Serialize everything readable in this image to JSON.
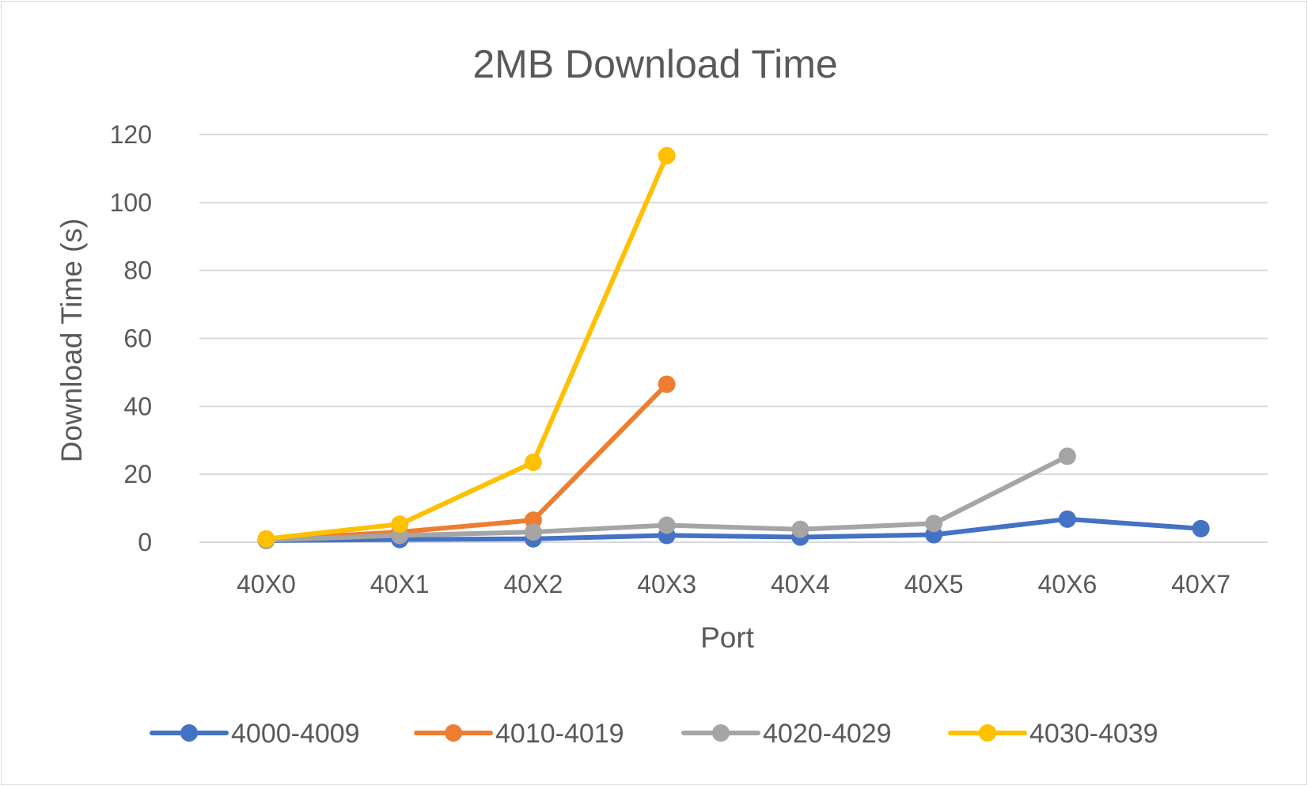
{
  "chart_data": {
    "type": "line",
    "title": "2MB Download Time",
    "xlabel": "Port",
    "ylabel": "Download Time (s)",
    "ylim": [
      0,
      120
    ],
    "yticks": [
      0,
      20,
      40,
      60,
      80,
      100,
      120
    ],
    "ytick_labels": [
      "0",
      "20",
      "40",
      "60",
      "80",
      "100",
      "120"
    ],
    "categories": [
      "40X0",
      "40X1",
      "40X2",
      "40X3",
      "40X4",
      "40X5",
      "40X6",
      "40X7"
    ],
    "grid": true,
    "legend_position": "bottom",
    "series": [
      {
        "name": "4000-4009",
        "color": "#4472C4",
        "values": [
          0.5,
          0.8,
          1.0,
          2.0,
          1.5,
          2.2,
          6.8,
          4.0
        ]
      },
      {
        "name": "4010-4019",
        "color": "#ED7D31",
        "values": [
          0.8,
          3.0,
          6.5,
          46.5,
          null,
          null,
          null,
          null
        ]
      },
      {
        "name": "4020-4029",
        "color": "#A5A5A5",
        "values": [
          0.6,
          2.0,
          3.0,
          5.0,
          3.8,
          5.5,
          25.3,
          null
        ]
      },
      {
        "name": "4030-4039",
        "color": "#FFC000",
        "values": [
          1.0,
          5.3,
          23.5,
          113.8,
          null,
          null,
          null,
          null
        ]
      }
    ]
  }
}
